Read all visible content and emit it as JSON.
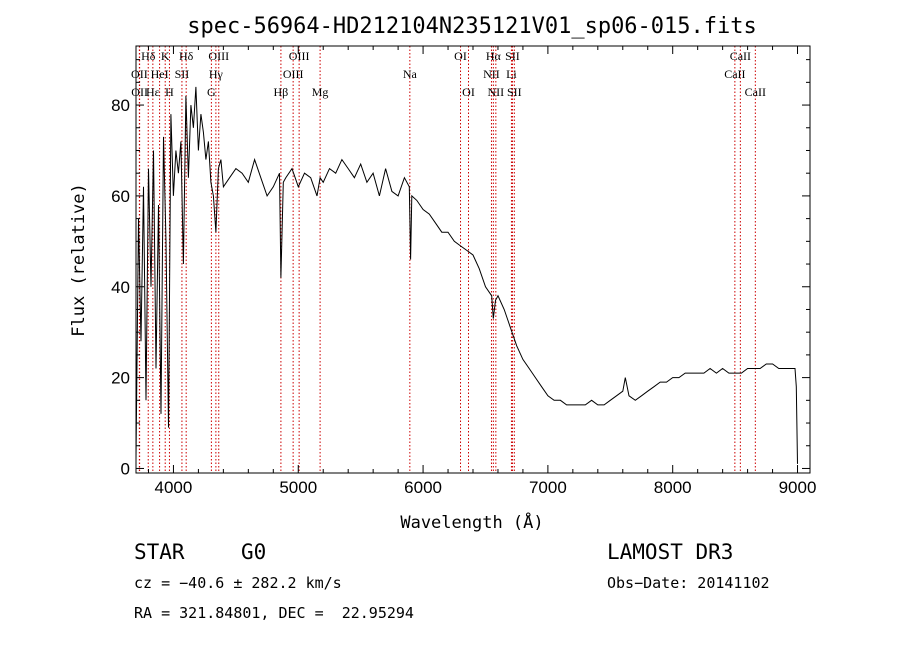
{
  "chart_data": {
    "type": "line",
    "title": "spec-56964-HD212104N235121V01_sp06-015.fits",
    "xlabel": "Wavelength (Å)",
    "ylabel": "Flux (relative)",
    "xlim": [
      3700,
      9100
    ],
    "ylim": [
      -1,
      93
    ],
    "xticks": [
      4000,
      5000,
      6000,
      7000,
      8000,
      9000
    ],
    "yticks": [
      0,
      20,
      40,
      60,
      80
    ],
    "series": [
      {
        "name": "flux",
        "x": [
          3700,
          3720,
          3740,
          3760,
          3780,
          3800,
          3820,
          3840,
          3860,
          3880,
          3900,
          3920,
          3940,
          3960,
          3980,
          4000,
          4020,
          4040,
          4060,
          4080,
          4100,
          4120,
          4140,
          4160,
          4180,
          4200,
          4220,
          4240,
          4260,
          4280,
          4300,
          4320,
          4340,
          4360,
          4380,
          4400,
          4450,
          4500,
          4550,
          4600,
          4650,
          4700,
          4750,
          4800,
          4850,
          4861,
          4880,
          4900,
          4950,
          5000,
          5050,
          5100,
          5150,
          5175,
          5200,
          5250,
          5300,
          5350,
          5400,
          5450,
          5500,
          5550,
          5600,
          5650,
          5700,
          5750,
          5800,
          5850,
          5890,
          5900,
          5910,
          5950,
          6000,
          6050,
          6100,
          6150,
          6200,
          6250,
          6300,
          6350,
          6400,
          6450,
          6500,
          6550,
          6563,
          6580,
          6600,
          6650,
          6700,
          6750,
          6800,
          6850,
          6900,
          6950,
          7000,
          7050,
          7100,
          7150,
          7200,
          7250,
          7300,
          7350,
          7400,
          7450,
          7500,
          7550,
          7600,
          7620,
          7650,
          7700,
          7750,
          7800,
          7850,
          7900,
          7950,
          8000,
          8050,
          8100,
          8150,
          8200,
          8250,
          8300,
          8350,
          8400,
          8450,
          8500,
          8550,
          8600,
          8650,
          8700,
          8750,
          8800,
          8850,
          8900,
          8950,
          8980,
          8990,
          9000
        ],
        "y": [
          2,
          55,
          28,
          62,
          15,
          66,
          40,
          70,
          22,
          58,
          12,
          73,
          50,
          9,
          78,
          60,
          70,
          65,
          72,
          45,
          82,
          64,
          80,
          75,
          84,
          70,
          78,
          74,
          68,
          72,
          63,
          60,
          52,
          66,
          68,
          62,
          64,
          66,
          65,
          63,
          68,
          64,
          60,
          62,
          65,
          42,
          63,
          64,
          66,
          62,
          65,
          64,
          60,
          64,
          63,
          66,
          65,
          68,
          66,
          64,
          67,
          63,
          65,
          60,
          66,
          61,
          60,
          64,
          62,
          46,
          60,
          59,
          57,
          56,
          54,
          52,
          52,
          50,
          49,
          48,
          47,
          44,
          40,
          38,
          33,
          37,
          38,
          35,
          31,
          27,
          24,
          22,
          20,
          18,
          16,
          15,
          15,
          14,
          14,
          14,
          14,
          15,
          14,
          14,
          15,
          16,
          17,
          20,
          16,
          15,
          16,
          17,
          18,
          19,
          19,
          20,
          20,
          21,
          21,
          21,
          21,
          22,
          21,
          22,
          21,
          21,
          21,
          22,
          22,
          22,
          23,
          23,
          22,
          22,
          22,
          22,
          18,
          1
        ]
      }
    ],
    "spectral_lines": [
      {
        "label": "Hδ",
        "x": 3798,
        "row": 1
      },
      {
        "label": "OII",
        "x": 3727,
        "row": 2
      },
      {
        "label": "OII",
        "x": 3729,
        "row": 3
      },
      {
        "label": "Hε",
        "x": 3835,
        "row": 3
      },
      {
        "label": "HeI",
        "x": 3889,
        "row": 2
      },
      {
        "label": "K",
        "x": 3934,
        "row": 1
      },
      {
        "label": "H",
        "x": 3968,
        "row": 3
      },
      {
        "label": "SII",
        "x": 4068,
        "row": 2
      },
      {
        "label": "Hδ",
        "x": 4102,
        "row": 1
      },
      {
        "label": "OIII",
        "x": 4363,
        "row": 1
      },
      {
        "label": "Hγ",
        "x": 4340,
        "row": 2
      },
      {
        "label": "G",
        "x": 4304,
        "row": 3
      },
      {
        "label": "OIII",
        "x": 5007,
        "row": 1
      },
      {
        "label": "OIII",
        "x": 4959,
        "row": 2
      },
      {
        "label": "Hβ",
        "x": 4861,
        "row": 3
      },
      {
        "label": "Mg",
        "x": 5175,
        "row": 3
      },
      {
        "label": "Na",
        "x": 5894,
        "row": 2
      },
      {
        "label": "OI",
        "x": 6300,
        "row": 1
      },
      {
        "label": "OI",
        "x": 6364,
        "row": 3
      },
      {
        "label": "Hα",
        "x": 6563,
        "row": 1
      },
      {
        "label": "SII",
        "x": 6716,
        "row": 1
      },
      {
        "label": "NII",
        "x": 6548,
        "row": 2
      },
      {
        "label": "Li",
        "x": 6708,
        "row": 2
      },
      {
        "label": "NII",
        "x": 6583,
        "row": 3
      },
      {
        "label": "SII",
        "x": 6731,
        "row": 3
      },
      {
        "label": "CaII",
        "x": 8542,
        "row": 1
      },
      {
        "label": "CaII",
        "x": 8498,
        "row": 2
      },
      {
        "label": "CaII",
        "x": 8662,
        "row": 3
      }
    ]
  },
  "info": {
    "object_class": "STAR",
    "subclass": "G0",
    "survey": "LAMOST DR3",
    "cz": "cz = −40.6 ± 282.2 km/s",
    "obs_date": "Obs−Date: 20141102",
    "coords": "RA = 321.84801, DEC =  22.95294"
  },
  "colors": {
    "line_markers": "#cc0000",
    "spectrum": "#000000"
  }
}
